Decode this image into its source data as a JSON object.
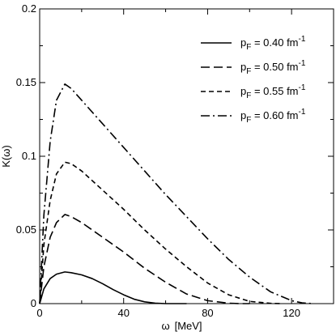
{
  "chart_data": {
    "type": "line",
    "title": "",
    "xlabel_main": "ω",
    "xlabel_unit": "[MeV]",
    "ylabel": "K(ω)",
    "xlim": [
      0,
      140
    ],
    "ylim": [
      0,
      0.2
    ],
    "x_ticks": [
      0,
      40,
      80,
      120
    ],
    "x_tick_labels": [
      "0",
      "40",
      "80",
      "120"
    ],
    "x_minor_step": 20,
    "y_ticks": [
      0,
      0.05,
      0.1,
      0.15,
      0.2
    ],
    "y_tick_labels": [
      "0",
      "0.05",
      "0.1",
      "0.15",
      "0.2"
    ],
    "y_minor_step": 0.025,
    "grid": false,
    "legend_position": "top-right",
    "series": [
      {
        "name_prefix": "p",
        "name_sub": "F",
        "name_value": " = 0.40 fm",
        "name_sup": "-1",
        "dash": "solid",
        "x": [
          0,
          2,
          5,
          8,
          12,
          15,
          20,
          25,
          30,
          35,
          40,
          45,
          50,
          55,
          60,
          70
        ],
        "y": [
          0,
          0.01,
          0.017,
          0.02,
          0.0215,
          0.021,
          0.0195,
          0.017,
          0.0135,
          0.0095,
          0.006,
          0.003,
          0.0012,
          0.0003,
          0,
          0
        ]
      },
      {
        "name_prefix": "p",
        "name_sub": "F",
        "name_value": " = 0.50 fm",
        "name_sup": "-1",
        "dash": "longdash",
        "x": [
          0,
          2,
          5,
          8,
          12,
          15,
          20,
          30,
          40,
          50,
          60,
          70,
          80,
          90,
          95,
          100
        ],
        "y": [
          0,
          0.025,
          0.045,
          0.055,
          0.0605,
          0.059,
          0.055,
          0.045,
          0.035,
          0.024,
          0.0145,
          0.0065,
          0.002,
          0.0003,
          0,
          0
        ]
      },
      {
        "name_prefix": "p",
        "name_sub": "F",
        "name_value": " = 0.55 fm",
        "name_sup": "-1",
        "dash": "shortdash",
        "x": [
          0,
          2,
          5,
          8,
          12,
          15,
          20,
          30,
          40,
          50,
          60,
          70,
          80,
          90,
          100,
          110,
          115
        ],
        "y": [
          0,
          0.04,
          0.07,
          0.088,
          0.096,
          0.095,
          0.09,
          0.077,
          0.064,
          0.05,
          0.037,
          0.025,
          0.014,
          0.006,
          0.0015,
          0.0002,
          0
        ]
      },
      {
        "name_prefix": "p",
        "name_sub": "F",
        "name_value": " = 0.60 fm",
        "name_sup": "-1",
        "dash": "dashdot",
        "x": [
          0,
          2,
          5,
          8,
          12,
          15,
          20,
          30,
          40,
          50,
          60,
          70,
          80,
          90,
          100,
          110,
          120,
          125,
          130
        ],
        "y": [
          0,
          0.06,
          0.11,
          0.138,
          0.149,
          0.146,
          0.138,
          0.122,
          0.106,
          0.09,
          0.074,
          0.059,
          0.044,
          0.03,
          0.018,
          0.008,
          0.002,
          0.0005,
          0
        ]
      }
    ]
  }
}
